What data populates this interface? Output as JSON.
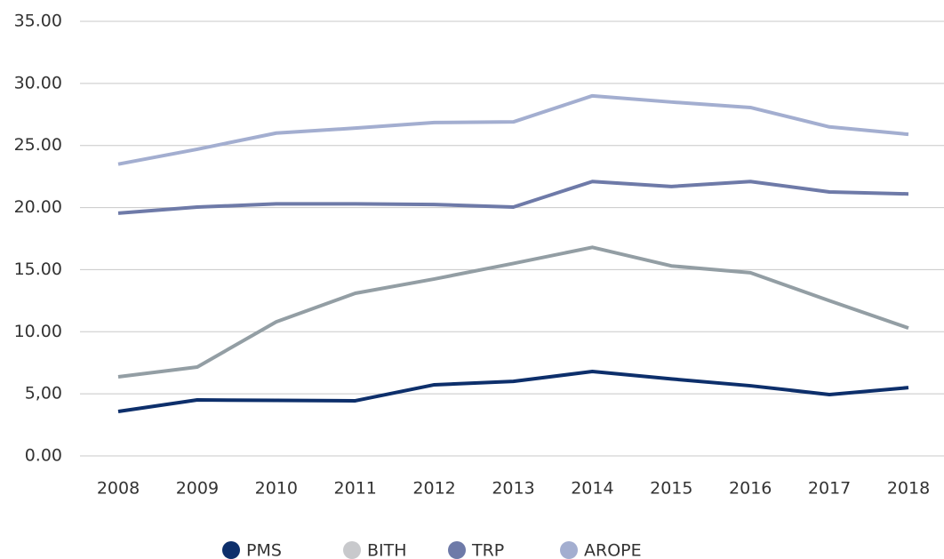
{
  "chart_data": {
    "type": "line",
    "categories": [
      "2008",
      "2009",
      "2010",
      "2011",
      "2012",
      "2013",
      "2014",
      "2015",
      "2016",
      "2017",
      "2018"
    ],
    "series": [
      {
        "name": "PMS",
        "color": "#0d2f6b",
        "values": [
          3.58,
          4.51,
          4.47,
          4.44,
          5.73,
          6.0,
          6.8,
          6.2,
          5.65,
          4.94,
          5.5
        ]
      },
      {
        "name": "BITH",
        "color": "#939ea4",
        "values": [
          6.37,
          7.16,
          10.8,
          13.1,
          14.25,
          15.5,
          16.8,
          15.3,
          14.75,
          12.5,
          10.3
        ]
      },
      {
        "name": "TRP",
        "color": "#6e7aa8",
        "values": [
          19.55,
          20.04,
          20.3,
          20.3,
          20.25,
          20.04,
          22.1,
          21.7,
          22.1,
          21.26,
          21.1
        ]
      },
      {
        "name": "AROPE",
        "color": "#a3aed0",
        "values": [
          23.5,
          24.7,
          26.0,
          26.4,
          26.85,
          26.9,
          29.0,
          28.5,
          28.06,
          26.5,
          25.9
        ]
      }
    ],
    "ylim": [
      0,
      35
    ],
    "yticks": [
      {
        "value": 0,
        "label": "0.00"
      },
      {
        "value": 5,
        "label": "5,00"
      },
      {
        "value": 10,
        "label": "10.00"
      },
      {
        "value": 15,
        "label": "15.00"
      },
      {
        "value": 20,
        "label": "20.00"
      },
      {
        "value": 25,
        "label": "25.00"
      },
      {
        "value": 30,
        "label": "30.00"
      },
      {
        "value": 35,
        "label": "35.00"
      }
    ],
    "grid": true,
    "legend": "bottom"
  }
}
